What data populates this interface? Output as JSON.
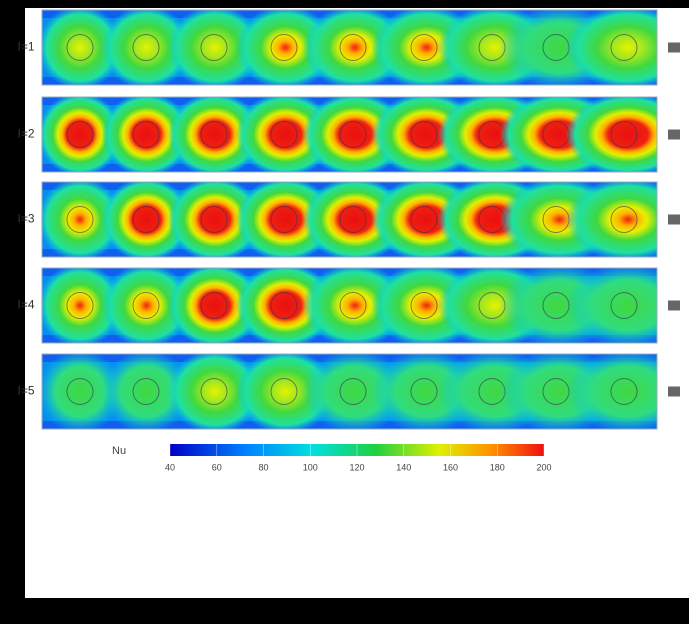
{
  "figure": {
    "row_labels": [
      "I=1",
      "I=2",
      "I=3",
      "I=4",
      "I=5"
    ],
    "colorbar": {
      "label": "Nu",
      "range": [
        40,
        200
      ],
      "ticks": [
        40,
        60,
        80,
        100,
        120,
        140,
        160,
        180,
        200
      ]
    }
  }
}
